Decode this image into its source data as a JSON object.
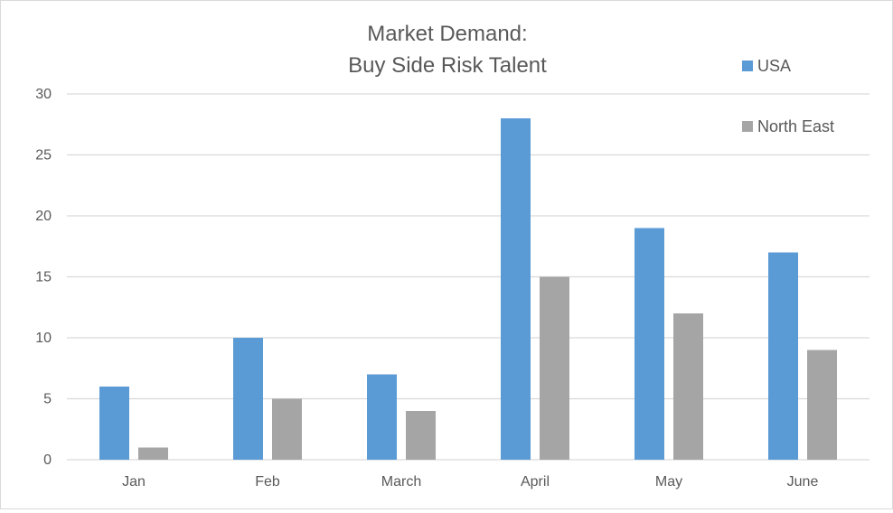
{
  "chart_data": {
    "type": "bar",
    "title_lines": [
      "Market Demand:",
      "Buy Side Risk Talent"
    ],
    "categories": [
      "Jan",
      "Feb",
      "March",
      "April",
      "May",
      "June"
    ],
    "series": [
      {
        "name": "USA",
        "color": "#5b9bd5",
        "values": [
          6,
          10,
          7,
          28,
          19,
          17
        ]
      },
      {
        "name": "North East",
        "color": "#a5a5a5",
        "values": [
          1,
          5,
          4,
          15,
          12,
          9
        ]
      }
    ],
    "ylim": [
      0,
      30
    ],
    "yticks": [
      0,
      5,
      10,
      15,
      20,
      25,
      30
    ],
    "grid": true,
    "legend_position": "top-right"
  }
}
